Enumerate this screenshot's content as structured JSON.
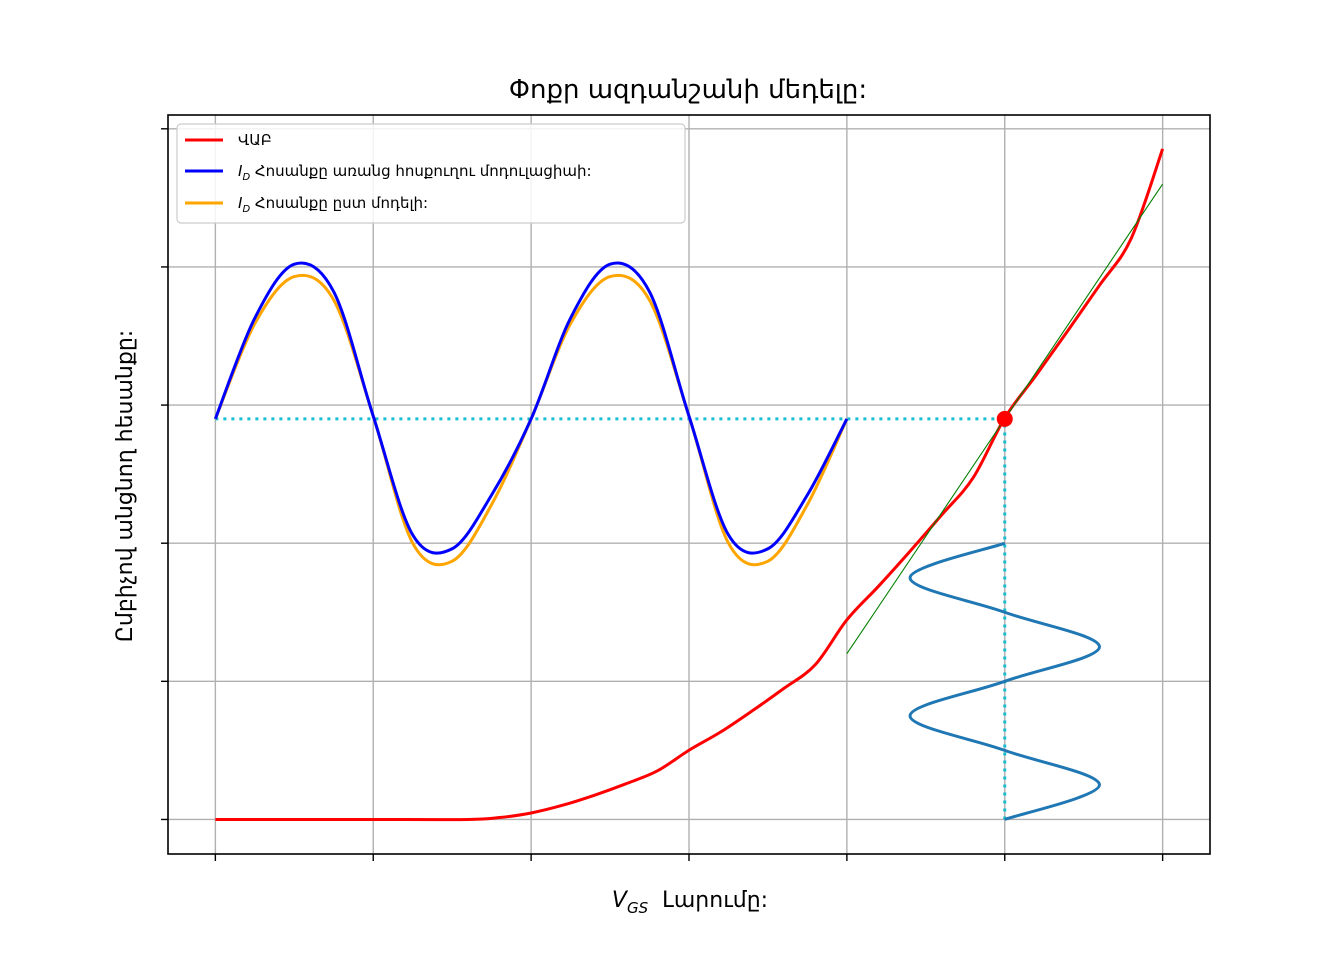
{
  "chart_data": {
    "type": "line",
    "title": "Փոքր ազդանշանի մեդելը:",
    "xlabel_symbol": "V",
    "xlabel_subscript": "GS",
    "xlabel_text": "Լարումը:",
    "ylabel": "Ըմբիչով անցնող հեսանքը:",
    "xlim": [
      -0.3,
      6.3
    ],
    "ylim": [
      -0.25,
      5.1
    ],
    "grid": true,
    "tick_labels_visible": false,
    "x_ticks": [
      0,
      1,
      2,
      3,
      4,
      5,
      6
    ],
    "y_ticks": [
      0,
      1,
      2,
      3,
      4,
      5
    ],
    "legend_position": "top-left",
    "legend": [
      {
        "label": "ՎԱԲ",
        "color": "#ff0000"
      },
      {
        "label_symbol": "I",
        "label_subscript": "D",
        "label_text": "Հոսանքը առանց հոսքուղու մոդուլացիաի:",
        "color": "#0000ff"
      },
      {
        "label_symbol": "I",
        "label_subscript": "D",
        "label_text": "Հոսանքը ըստ մոդելի:",
        "color": "#ffa500"
      }
    ],
    "series": [
      {
        "name": "ՎԱԲ",
        "color": "#ff0000",
        "x": [
          0,
          0.5,
          1.0,
          1.6,
          1.8,
          2.0,
          2.2,
          2.4,
          2.6,
          2.8,
          3.0,
          3.2,
          3.4,
          3.6,
          3.8,
          4.0,
          4.2,
          4.4,
          4.6,
          4.8,
          5.0,
          5.2,
          5.4,
          5.6,
          5.8,
          6.0
        ],
        "y": [
          0,
          0,
          0,
          0,
          0.014,
          0.047,
          0.103,
          0.175,
          0.258,
          0.352,
          0.501,
          0.633,
          0.786,
          0.948,
          1.121,
          1.445,
          1.688,
          1.942,
          2.204,
          2.474,
          2.907,
          3.218,
          3.539,
          3.867,
          4.204,
          4.855
        ]
      },
      {
        "name": "I_D Հոսանքը առանց հոսքուղու մոդուլացիաի:",
        "color": "#0000ff",
        "x": [
          0,
          0.25,
          0.5,
          0.75,
          1.0,
          1.25,
          1.5,
          1.75,
          2.0,
          2.25,
          2.5,
          2.75,
          3.0,
          3.25,
          3.5,
          3.75,
          4.0
        ],
        "y": [
          2.9,
          3.63,
          4.02,
          3.82,
          2.92,
          2.06,
          1.96,
          2.35,
          2.9,
          3.63,
          4.02,
          3.82,
          2.92,
          2.06,
          1.96,
          2.35,
          2.9
        ]
      },
      {
        "name": "I_D Հոսանքը ըստ մոդելի:",
        "color": "#ffa500",
        "x": [
          0,
          0.25,
          0.5,
          0.75,
          1.0,
          1.25,
          1.5,
          1.75,
          2.0,
          2.25,
          2.5,
          2.75,
          3.0,
          3.25,
          3.5,
          3.75,
          4.0
        ],
        "y": [
          2.9,
          3.59,
          3.93,
          3.76,
          2.92,
          2.0,
          1.87,
          2.28,
          2.9,
          3.59,
          3.93,
          3.76,
          2.92,
          2.0,
          1.87,
          2.28,
          2.9
        ]
      },
      {
        "name": "tangent",
        "color": "#008000",
        "x": [
          4.0,
          6.0
        ],
        "y": [
          1.2,
          4.6
        ]
      },
      {
        "name": "input-signal",
        "color": "#1f77b4",
        "x": [
          5.0,
          5.6,
          5.0,
          4.4,
          5.0,
          5.6,
          5.0,
          4.4,
          5.0
        ],
        "y": [
          0,
          0.25,
          0.5,
          0.75,
          1.0,
          1.25,
          1.5,
          1.75,
          2.0
        ]
      }
    ],
    "operating_point": {
      "x": 5.0,
      "y": 2.9,
      "color": "#ff0000"
    },
    "guide_lines": [
      {
        "x": [
          0,
          5.0
        ],
        "y": [
          2.9,
          2.9
        ],
        "color": "#17becf",
        "style": "dotted"
      },
      {
        "x": [
          5.0,
          5.0
        ],
        "y": [
          0,
          2.9
        ],
        "color": "#17becf",
        "style": "dotted"
      }
    ]
  }
}
